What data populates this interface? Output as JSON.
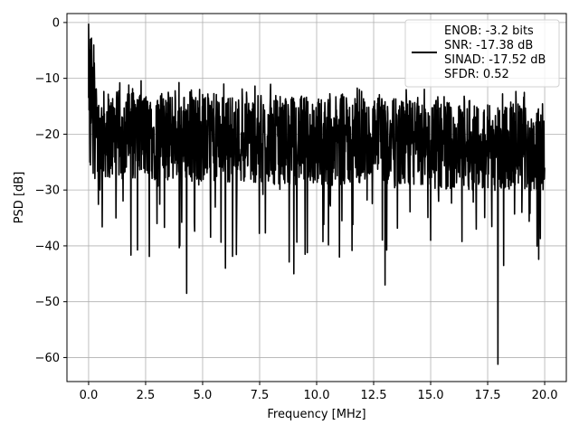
{
  "chart_data": {
    "type": "line",
    "xlabel": "Frequency [MHz]",
    "ylabel": "PSD [dB]",
    "xlim": [
      -0.95,
      20.95
    ],
    "ylim": [
      -64.3,
      1.6
    ],
    "xticks": [
      0.0,
      2.5,
      5.0,
      7.5,
      10.0,
      12.5,
      15.0,
      17.5,
      20.0
    ],
    "xtick_labels": [
      "0.0",
      "2.5",
      "5.0",
      "7.5",
      "10.0",
      "12.5",
      "15.0",
      "17.5",
      "20.0"
    ],
    "yticks": [
      0,
      -10,
      -20,
      -30,
      -40,
      -50,
      -60
    ],
    "ytick_labels": [
      "0",
      "−10",
      "−20",
      "−30",
      "−40",
      "−50",
      "−60"
    ],
    "grid": true,
    "legend_position": "top-right",
    "legend_entries": [
      "ENOB: -3.2 bits",
      "SNR: -17.38 dB",
      "SINAD: -17.52 dB",
      "SFDR: 0.52"
    ],
    "series_color": "#000000",
    "series": [
      {
        "x": [
          0.0,
          0.02,
          0.04,
          0.06,
          0.08,
          0.1,
          0.15,
          0.2,
          0.3,
          0.5,
          0.8,
          1.2,
          2.0,
          3.0,
          4.0,
          4.3,
          5.0,
          6.0,
          7.5,
          9.0,
          10.0,
          11.0,
          12.5,
          13.0,
          14.0,
          15.0,
          16.0,
          17.0,
          17.5,
          17.95,
          18.5,
          19.0,
          19.5,
          20.0
        ],
        "y": [
          -0.3,
          -13.0,
          -5.0,
          -25.0,
          -3.0,
          -18.0,
          -8.0,
          -27.0,
          -12.0,
          -30.0,
          -16.0,
          -35.0,
          -14.0,
          -36.0,
          -40.0,
          -48.5,
          -20.0,
          -44.0,
          -18.0,
          -45.0,
          -24.0,
          -42.0,
          -15.0,
          -47.0,
          -21.0,
          -39.0,
          -17.0,
          -37.0,
          -22.0,
          -61.2,
          -25.0,
          -34.0,
          -18.0,
          -26.0
        ]
      }
    ]
  }
}
